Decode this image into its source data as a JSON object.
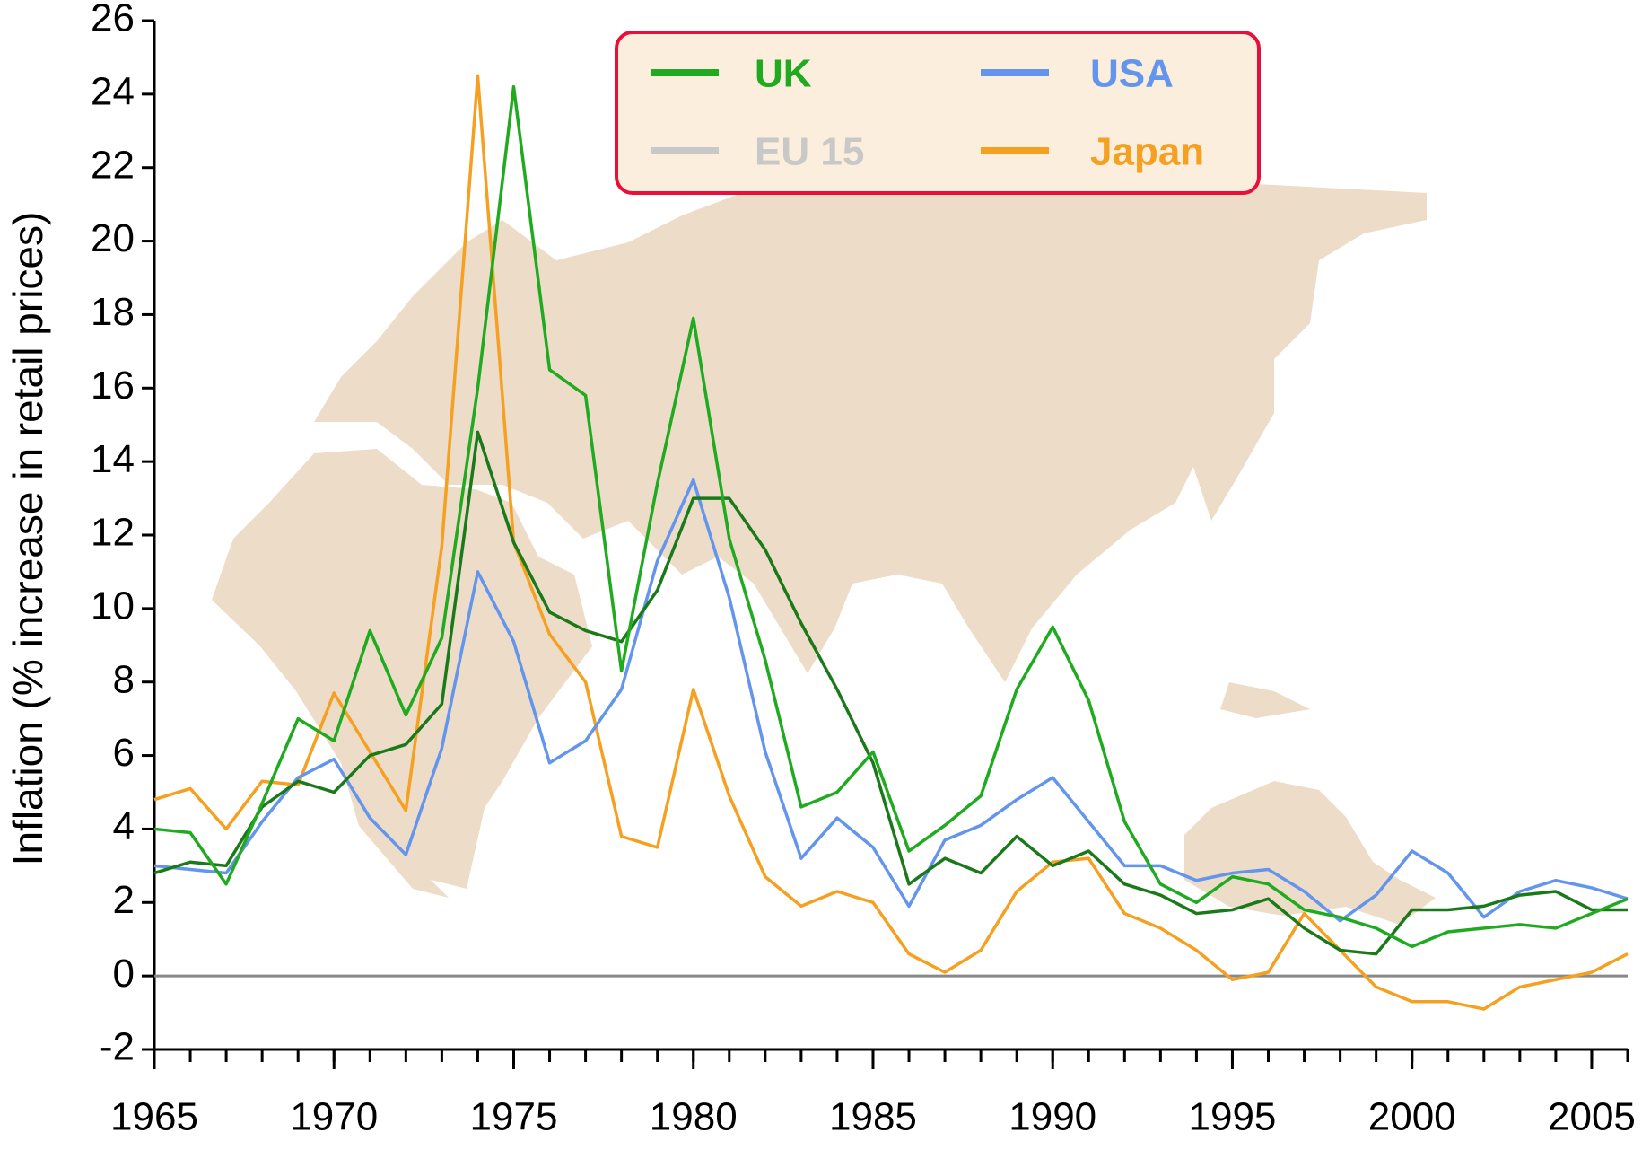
{
  "chart_data": {
    "type": "line",
    "y_label": "Inflation (% increase in retail prices)",
    "x": [
      1965,
      1966,
      1967,
      1968,
      1969,
      1970,
      1971,
      1972,
      1973,
      1974,
      1975,
      1976,
      1977,
      1978,
      1979,
      1980,
      1981,
      1982,
      1983,
      1984,
      1985,
      1986,
      1987,
      1988,
      1989,
      1990,
      1991,
      1992,
      1993,
      1994,
      1995,
      1996,
      1997,
      1998,
      1999,
      2000,
      2001,
      2002,
      2003,
      2004,
      2005,
      2006
    ],
    "series": [
      {
        "name": "UK",
        "color": "#1faa1f",
        "values": [
          4.0,
          3.9,
          2.5,
          4.7,
          7.0,
          6.4,
          9.4,
          7.1,
          9.2,
          16.0,
          24.2,
          16.5,
          15.8,
          8.3,
          13.4,
          17.9,
          11.9,
          8.6,
          4.6,
          5.0,
          6.1,
          3.4,
          4.1,
          4.9,
          7.8,
          9.5,
          7.5,
          4.2,
          2.5,
          2.0,
          2.7,
          2.5,
          1.8,
          1.6,
          1.3,
          0.8,
          1.2,
          1.3,
          1.4,
          1.3,
          1.7,
          2.1
        ]
      },
      {
        "name": "USA",
        "color": "#6495ed",
        "values": [
          3.0,
          2.9,
          2.8,
          4.2,
          5.4,
          5.9,
          4.3,
          3.3,
          6.2,
          11.0,
          9.1,
          5.8,
          6.4,
          7.8,
          11.3,
          13.5,
          10.3,
          6.1,
          3.2,
          4.3,
          3.5,
          1.9,
          3.7,
          4.1,
          4.8,
          5.4,
          4.2,
          3.0,
          3.0,
          2.6,
          2.8,
          2.9,
          2.3,
          1.5,
          2.2,
          3.4,
          2.8,
          1.6,
          2.3,
          2.6,
          2.4,
          2.1
        ]
      },
      {
        "name": "EU 15",
        "color": "#1a7a1a",
        "legend_color": "#c8c8c8",
        "values": [
          2.8,
          3.1,
          3.0,
          4.6,
          5.3,
          5.0,
          6.0,
          6.3,
          7.4,
          14.8,
          11.8,
          9.9,
          9.4,
          9.1,
          10.5,
          13.0,
          13.0,
          11.6,
          9.6,
          7.8,
          5.8,
          2.5,
          3.2,
          2.8,
          3.8,
          3.0,
          3.4,
          2.5,
          2.2,
          1.7,
          1.8,
          2.1,
          1.3,
          0.7,
          0.6,
          1.8,
          1.8,
          1.9,
          2.2,
          2.3,
          1.8,
          1.8
        ]
      },
      {
        "name": "Japan",
        "color": "#f5a020",
        "values": [
          4.8,
          5.1,
          4.0,
          5.3,
          5.2,
          7.7,
          6.1,
          4.5,
          11.7,
          24.5,
          11.8,
          9.3,
          8.0,
          3.8,
          3.5,
          7.8,
          4.9,
          2.7,
          1.9,
          2.3,
          2.0,
          0.6,
          0.1,
          0.7,
          2.3,
          3.1,
          3.2,
          1.7,
          1.3,
          0.7,
          -0.1,
          0.1,
          1.7,
          0.7,
          -0.3,
          -0.7,
          -0.7,
          -0.9,
          -0.3,
          -0.1,
          0.1,
          0.6
        ]
      }
    ],
    "xlim": [
      1965,
      2006
    ],
    "xticks": [
      1965,
      1970,
      1975,
      1980,
      1985,
      1990,
      1995,
      2000,
      2005
    ],
    "ylim": [
      -2,
      26
    ],
    "yticks": [
      -2,
      0,
      2,
      4,
      6,
      8,
      10,
      12,
      14,
      16,
      18,
      20,
      22,
      24,
      26
    ],
    "zero_line": true,
    "legend": "top"
  }
}
